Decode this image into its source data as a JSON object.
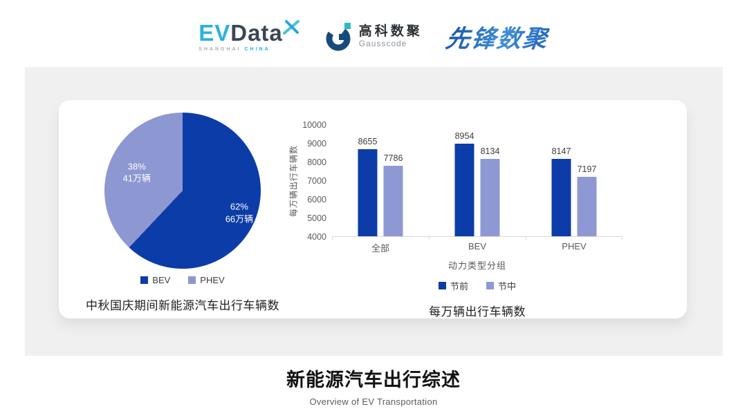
{
  "header": {
    "evdata": {
      "part1": "EV",
      "part2": "Data",
      "tagline_1": "SHANGHAI",
      "tagline_2": "CHINA"
    },
    "gausscode": {
      "name_cn": "高科数聚",
      "name_en": "Gausscode"
    },
    "pioneer": {
      "name": "先锋数聚"
    }
  },
  "chart_data": [
    {
      "type": "pie",
      "title": "中秋国庆期间新能源汽车出行车辆数",
      "start_angle": "top-clockwise",
      "legend_position": "bottom",
      "slices": [
        {
          "label": "BEV",
          "percent": 62,
          "value_label": "66万辆",
          "color": "#0c3ca7",
          "label_r": 0.78
        },
        {
          "label": "PHEV",
          "percent": 38,
          "value_label": "41万辆",
          "color": "#8d97d2",
          "label_r": 0.63
        }
      ]
    },
    {
      "type": "bar",
      "title": "每万辆出行车辆数",
      "categories": [
        "全部",
        "BEV",
        "PHEV"
      ],
      "series": [
        {
          "name": "节前",
          "color": "#0c3ca7",
          "values": [
            8655,
            8954,
            8147
          ]
        },
        {
          "name": "节中",
          "color": "#8e99d4",
          "values": [
            7786,
            8134,
            7197
          ]
        }
      ],
      "xlabel": "动力类型分组",
      "ylabel": "每万辆出行车辆数",
      "ylim": [
        4000,
        10000
      ],
      "yticks": [
        4000,
        5000,
        6000,
        7000,
        8000,
        9000,
        10000
      ],
      "grid": false,
      "legend_position": "bottom"
    }
  ],
  "footer": {
    "title": "新能源汽车出行综述",
    "subtitle": "Overview of EV Transportation"
  }
}
